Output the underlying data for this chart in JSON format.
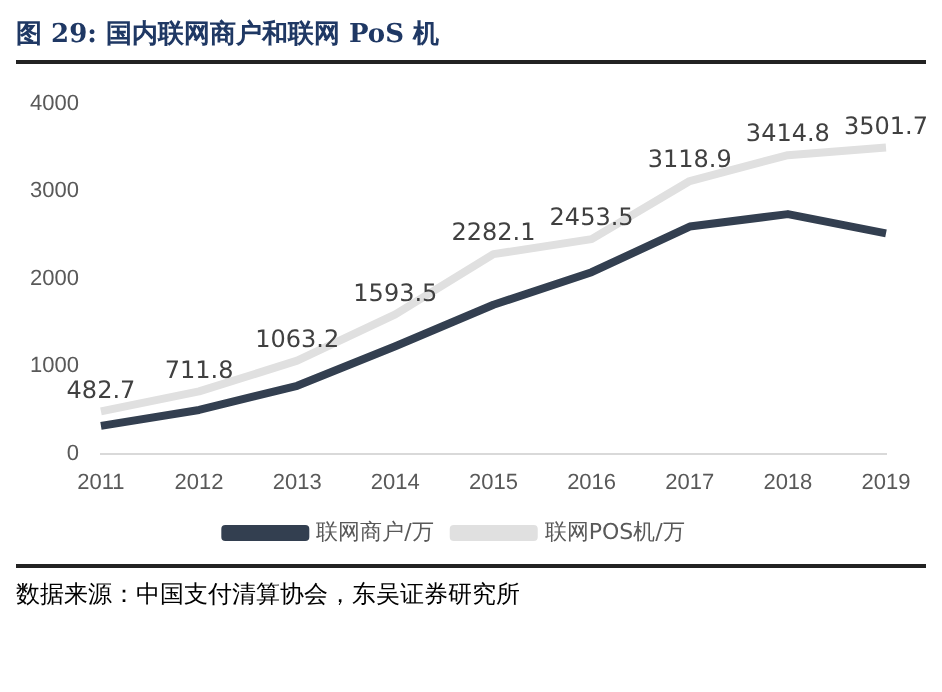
{
  "chart_data": {
    "type": "line",
    "title": "图 29: 国内联网商户和联网 PoS 机",
    "categories": [
      "2011",
      "2012",
      "2013",
      "2014",
      "2015",
      "2016",
      "2017",
      "2018",
      "2019"
    ],
    "series": [
      {
        "name": "联网商户/万",
        "color": "#333f50",
        "values": [
          317,
          499,
          776,
          1228,
          1703,
          2075,
          2598,
          2740,
          2519
        ]
      },
      {
        "name": "联网POS机/万",
        "color": "#e0e0e0",
        "values": [
          482.7,
          711.8,
          1063.2,
          1593.5,
          2282.1,
          2453.5,
          3118.9,
          3414.8,
          3501.7
        ],
        "value_labels": [
          "482.7",
          "711.8",
          "1063.2",
          "1593.5",
          "2282.1",
          "2453.5",
          "3118.9",
          "3414.8",
          "3501.7"
        ]
      }
    ],
    "ylim": [
      0,
      4000
    ],
    "yticks": [
      0,
      1000,
      2000,
      3000,
      4000
    ],
    "grid": false,
    "legend": "bottom",
    "marker": "none",
    "line_style": "solid",
    "annotations": [
      "数据来源：中国支付清算协会，东吴证券研究所"
    ]
  }
}
